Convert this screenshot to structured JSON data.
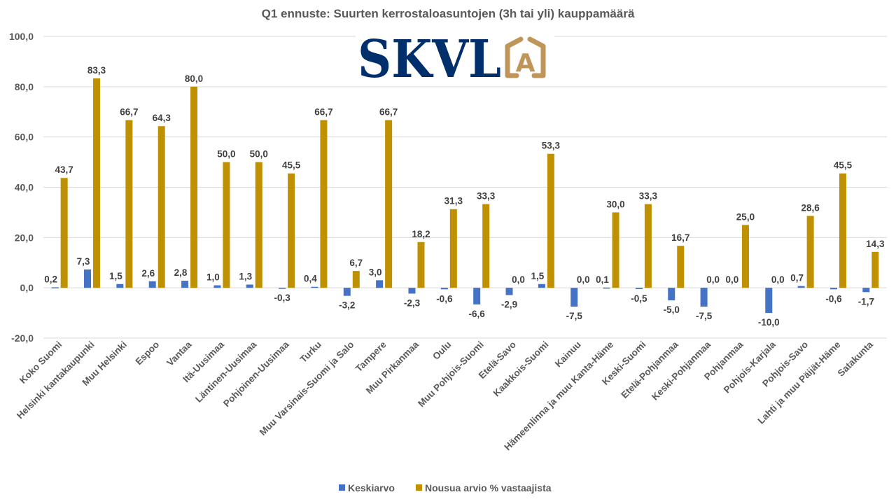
{
  "chart_data": {
    "type": "bar",
    "title": "Q1 ennuste: Suurten kerrostaloasuntojen (3h tai yli) kauppamäärä",
    "xlabel": "",
    "ylabel": "",
    "ylim": [
      -20,
      100
    ],
    "yticks": [
      100,
      80,
      60,
      40,
      20,
      0,
      -20
    ],
    "ytick_labels": [
      "100,0",
      "80,0",
      "60,0",
      "40,0",
      "20,0",
      "0,0",
      "-20,0"
    ],
    "grid": true,
    "legend_position": "bottom",
    "categories": [
      "Koko Suomi",
      "Helsinki kantakaupunki",
      "Muu Helsinki",
      "Espoo",
      "Vantaa",
      "Itä-Uusimaa",
      "Läntinen-Uusimaa",
      "Pohjoinen-Uusimaa",
      "Turku",
      "Muu Varsinais-Suomi ja Salo",
      "Tampere",
      "Muu Pirkanmaa",
      "Oulu",
      "Muu Pohjois-Suomi",
      "Etelä-Savo",
      "Kaakkois-Suomi",
      "Kainuu",
      "Hämeenlinna ja muu Kanta-Häme",
      "Keski-Suomi",
      "Etelä-Pohjanmaa",
      "Keski-Pohjanmaa",
      "Pohjanmaa",
      "Pohjois-Karjala",
      "Pohjois-Savo",
      "Lahti ja muu Päijät-Häme",
      "Satakunta"
    ],
    "series": [
      {
        "name": "Keskiarvo",
        "color": "#4472c4",
        "values": [
          0.2,
          7.3,
          1.5,
          2.6,
          2.8,
          1.0,
          1.3,
          -0.3,
          0.4,
          -3.2,
          3.0,
          -2.3,
          -0.6,
          -6.6,
          -2.9,
          1.5,
          -7.5,
          0.1,
          -0.5,
          -5.0,
          -7.5,
          0.0,
          -10.0,
          0.7,
          -0.6,
          -1.7
        ],
        "labels": [
          "0,2",
          "7,3",
          "1,5",
          "2,6",
          "2,8",
          "1,0",
          "1,3",
          "-0,3",
          "0,4",
          "-3,2",
          "3,0",
          "-2,3",
          "-0,6",
          "-6,6",
          "-2,9",
          "1,5",
          "-7,5",
          "0,1",
          "-0,5",
          "-5,0",
          "-7,5",
          "0,0",
          "-10,0",
          "0,7",
          "-0,6",
          "-1,7"
        ]
      },
      {
        "name": "Nousua arvio % vastaajista",
        "color": "#bf9000",
        "values": [
          43.7,
          83.3,
          66.7,
          64.3,
          80.0,
          50.0,
          50.0,
          45.5,
          66.7,
          6.7,
          66.7,
          18.2,
          31.3,
          33.3,
          0.0,
          53.3,
          0.0,
          30.0,
          33.3,
          16.7,
          0.0,
          25.0,
          0.0,
          28.6,
          45.5,
          14.3
        ],
        "labels": [
          "43,7",
          "83,3",
          "66,7",
          "64,3",
          "80,0",
          "50,0",
          "50,0",
          "45,5",
          "66,7",
          "6,7",
          "66,7",
          "18,2",
          "31,3",
          "33,3",
          "0,0",
          "53,3",
          "0,0",
          "30,0",
          "33,3",
          "16,7",
          "0,0",
          "25,0",
          "0,0",
          "28,6",
          "45,5",
          "14,3"
        ]
      }
    ]
  },
  "logo": {
    "text": "SKVL",
    "badge_letter": "A",
    "text_color": "#002f6c",
    "badge_color": "#c0955a"
  },
  "colors": {
    "gridline": "#d9d9d9",
    "axis_text": "#595959",
    "data_label": "#404040"
  }
}
